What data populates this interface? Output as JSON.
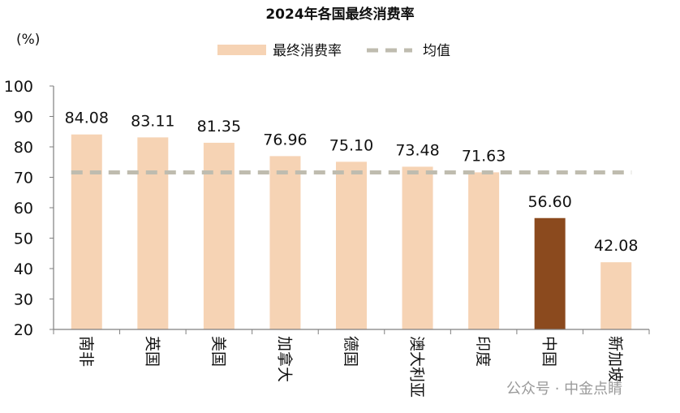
{
  "chart_data": {
    "type": "bar",
    "title": "2024年各国最终消费率",
    "unit_label": "(%)",
    "categories": [
      "南非",
      "英国",
      "美国",
      "加拿大",
      "德国",
      "澳大利亚",
      "印度",
      "中国",
      "新加坡"
    ],
    "series": [
      {
        "name": "最终消费率",
        "values": [
          84.08,
          83.11,
          81.35,
          76.96,
          75.1,
          73.48,
          71.63,
          56.6,
          42.08
        ]
      }
    ],
    "value_labels": [
      "84.08",
      "83.11",
      "81.35",
      "76.96",
      "75.10",
      "73.48",
      "71.63",
      "56.60",
      "42.08"
    ],
    "reference_line": {
      "name": "均值",
      "value": 71.6,
      "style": "dashed"
    },
    "highlight_category": "中国",
    "ylim": [
      20,
      100
    ],
    "yticks": [
      "20",
      "30",
      "40",
      "50",
      "60",
      "70",
      "80",
      "90",
      "100"
    ],
    "xlabel": "",
    "ylabel": "",
    "grid": false,
    "legend_position": "top-center",
    "colors": {
      "bar": "#f6d3b4",
      "highlight": "#8b4a1e",
      "mean_line": "#bfbcaf",
      "axis": "#7f7f7f"
    }
  },
  "watermark": "公众号 · 中金点睛"
}
